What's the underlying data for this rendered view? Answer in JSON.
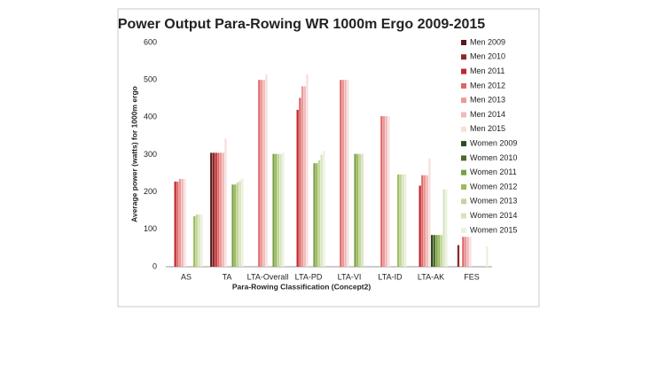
{
  "chart_data": {
    "type": "bar",
    "title": "Power Output Para-Rowing WR 1000m Ergo 2009-2015",
    "x_label": "Para-Rowing Classification (Concept2)",
    "y_label": "Average power (watts) for 1000m ergo",
    "categories": [
      "AS",
      "TA",
      "LTA-Overall",
      "LTA-PD",
      "LTA-VI",
      "LTA-ID",
      "LTA-AK",
      "FES"
    ],
    "ylim": [
      0,
      600
    ],
    "yticks": [
      0,
      100,
      200,
      300,
      400,
      500,
      600
    ],
    "grid": false,
    "legend": "right",
    "series": [
      {
        "name": "Men 2009",
        "color": "#5a1a1a",
        "values": [
          null,
          305,
          null,
          null,
          null,
          null,
          null,
          null
        ]
      },
      {
        "name": "Men 2010",
        "color": "#8b2a2a",
        "values": [
          null,
          305,
          null,
          null,
          null,
          null,
          null,
          58
        ]
      },
      {
        "name": "Men 2011",
        "color": "#c0282e",
        "values": [
          228,
          305,
          null,
          420,
          null,
          null,
          217,
          null
        ]
      },
      {
        "name": "Men 2012",
        "color": "#e06666",
        "values": [
          228,
          305,
          500,
          452,
          500,
          403,
          245,
          80
        ]
      },
      {
        "name": "Men 2013",
        "color": "#ea9999",
        "values": [
          235,
          305,
          500,
          483,
          500,
          403,
          245,
          80
        ]
      },
      {
        "name": "Men 2014",
        "color": "#f2b8b8",
        "values": [
          235,
          305,
          500,
          483,
          500,
          403,
          245,
          80
        ]
      },
      {
        "name": "Men 2015",
        "color": "#f8dede",
        "values": [
          235,
          343,
          515,
          515,
          500,
          403,
          290,
          80
        ]
      },
      {
        "name": "Women 2009",
        "color": "#2e4a1e",
        "values": [
          null,
          null,
          null,
          null,
          null,
          null,
          85,
          null
        ]
      },
      {
        "name": "Women 2010",
        "color": "#4e6b2a",
        "values": [
          null,
          null,
          null,
          null,
          null,
          null,
          85,
          null
        ]
      },
      {
        "name": "Women 2011",
        "color": "#77a047",
        "values": [
          null,
          220,
          302,
          277,
          302,
          null,
          85,
          null
        ]
      },
      {
        "name": "Women 2012",
        "color": "#9bbb59",
        "values": [
          135,
          220,
          302,
          277,
          302,
          247,
          85,
          null
        ]
      },
      {
        "name": "Women 2013",
        "color": "#c3d69b",
        "values": [
          140,
          225,
          302,
          285,
          302,
          247,
          85,
          null
        ]
      },
      {
        "name": "Women 2014",
        "color": "#d7e4bd",
        "values": [
          140,
          230,
          302,
          300,
          302,
          247,
          207,
          null
        ]
      },
      {
        "name": "Women 2015",
        "color": "#ebf1de",
        "values": [
          140,
          237,
          305,
          310,
          null,
          247,
          207,
          55
        ]
      }
    ]
  }
}
